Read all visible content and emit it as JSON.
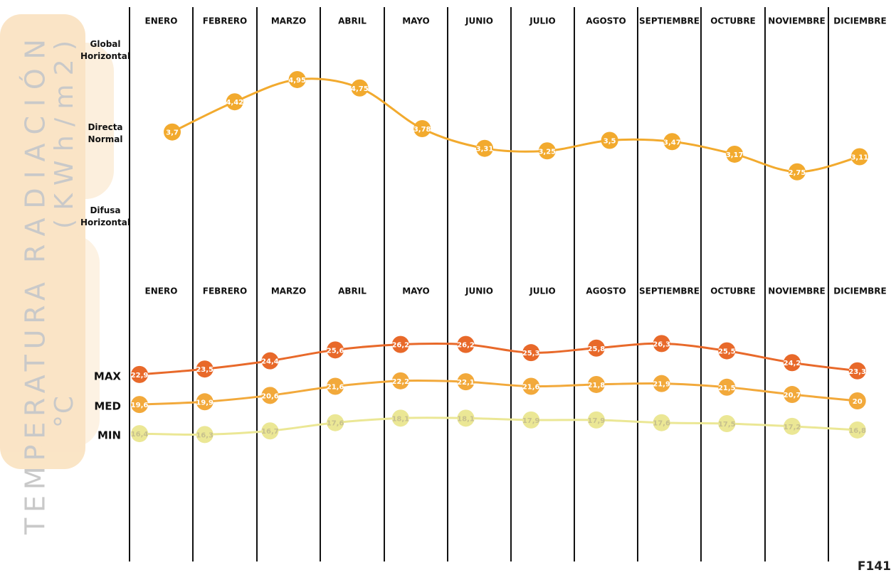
{
  "chart_data": [
    {
      "type": "line",
      "ylabel": "RADIACIÓN",
      "yunit": "(KWh/m2)",
      "row_labels": [
        "Global Horizontal",
        "Directa Normal",
        "Difusa Horizontal"
      ],
      "categories": [
        "ENERO",
        "FEBRERO",
        "MARZO",
        "ABRIL",
        "MAYO",
        "JUNIO",
        "JULIO",
        "AGOSTO",
        "SEPTIEMBRE",
        "OCTUBRE",
        "NOVIEMBRE",
        "DICIEMBRE"
      ],
      "ylim": [
        1,
        6
      ],
      "series": [
        {
          "color": "#f2aa2e",
          "values": [
            3.7,
            4.42,
            4.95,
            4.75,
            3.78,
            3.31,
            3.25,
            3.5,
            3.47,
            3.17,
            2.75,
            3.11
          ],
          "value_labels": [
            "3,7",
            "4,42",
            "4,95",
            "4,75",
            "3,78",
            "3,31",
            "3,25",
            "3,5",
            "3,47",
            "3,17",
            "2,75",
            "3,11"
          ]
        }
      ]
    },
    {
      "type": "line",
      "ylabel": "TEMPERATURA",
      "yunit": "°C",
      "categories": [
        "ENERO",
        "FEBRERO",
        "MARZO",
        "ABRIL",
        "MAYO",
        "JUNIO",
        "JULIO",
        "AGOSTO",
        "SEPTIEMBRE",
        "OCTUBRE",
        "NOVIEMBRE",
        "DICIEMBRE"
      ],
      "ylim": [
        10,
        30
      ],
      "series": [
        {
          "name": "MAX",
          "color": "#e8692a",
          "values": [
            22.9,
            23.5,
            24.4,
            25.6,
            26.2,
            26.2,
            25.3,
            25.8,
            26.3,
            25.5,
            24.2,
            23.3
          ],
          "value_labels": [
            "22,9",
            "23,5",
            "24,4",
            "25,6",
            "26,2",
            "26,2",
            "25,3",
            "25,8",
            "26,3",
            "25,5",
            "24,2",
            "23,3"
          ]
        },
        {
          "name": "MED",
          "color": "#f2a93b",
          "values": [
            19.6,
            19.9,
            20.6,
            21.6,
            22.2,
            22.1,
            21.6,
            21.8,
            21.9,
            21.5,
            20.7,
            20
          ],
          "value_labels": [
            "19,6",
            "19,9",
            "20,6",
            "21,6",
            "22,2",
            "22,1",
            "21,6",
            "21,8",
            "21,9",
            "21,5",
            "20,7",
            "20"
          ]
        },
        {
          "name": "MIN",
          "color": "#ebe795",
          "values": [
            16.4,
            16.3,
            16.7,
            17.6,
            18.1,
            18.1,
            17.9,
            17.9,
            17.6,
            17.5,
            17.2,
            16.8
          ],
          "value_labels": [
            "16,4",
            "16,3",
            "16,7",
            "17,6",
            "18,1",
            "18,1",
            "17,9",
            "17,9",
            "17,6",
            "17,5",
            "17,2",
            "16,8"
          ]
        }
      ]
    }
  ],
  "figure_label": "F141"
}
